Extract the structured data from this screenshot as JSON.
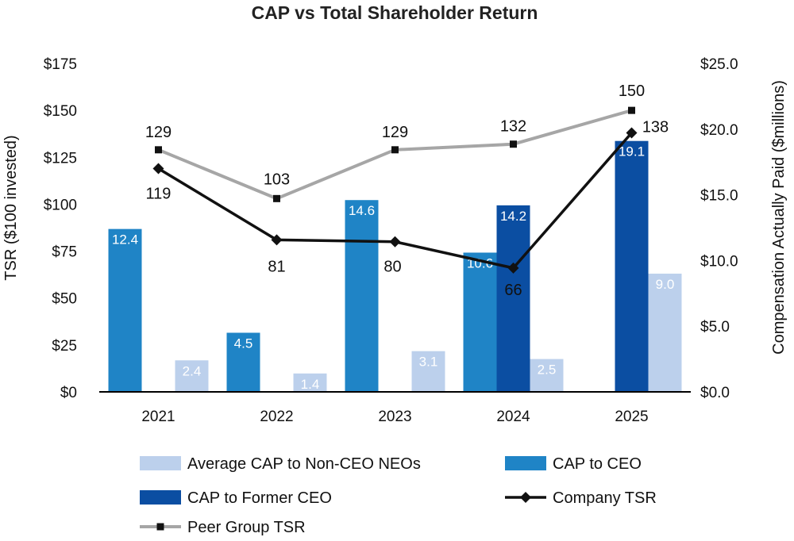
{
  "chart_data": {
    "type": "bar+line",
    "title": "CAP vs Total Shareholder Return",
    "categories": [
      "2021",
      "2022",
      "2023",
      "2024",
      "2025"
    ],
    "y_left": {
      "label": "TSR ($100 invested)",
      "min": 0,
      "max": 175,
      "ticks": [
        "$0",
        "$25",
        "$50",
        "$75",
        "$100",
        "$125",
        "$150",
        "$175"
      ]
    },
    "y_right": {
      "label": "Compensation Actually Paid ($millions)",
      "min": 0,
      "max": 25,
      "ticks": [
        "$0.0",
        "$5.0",
        "$10.0",
        "$15.0",
        "$20.0",
        "$25.0"
      ]
    },
    "bar_series": [
      {
        "name": "CAP to CEO",
        "color": "#1f84c6",
        "values": [
          12.4,
          4.5,
          14.6,
          10.6,
          null
        ],
        "labels": [
          "12.4",
          "4.5",
          "14.6",
          "10.6",
          ""
        ]
      },
      {
        "name": "CAP to Former CEO",
        "color": "#0b4ea2",
        "values": [
          null,
          null,
          null,
          14.2,
          19.1
        ],
        "labels": [
          "",
          "",
          "",
          "14.2",
          "19.1"
        ]
      },
      {
        "name": "Average CAP to Non-CEO NEOs",
        "color": "#bcd0ec",
        "values": [
          2.4,
          1.4,
          3.1,
          2.5,
          9.0
        ],
        "labels": [
          "2.4",
          "1.4",
          "3.1",
          "2.5",
          "9.0"
        ]
      }
    ],
    "line_series": [
      {
        "name": "Company TSR",
        "color": "#111111",
        "marker": "diamond",
        "values": [
          119,
          81,
          80,
          66,
          138
        ],
        "labels": [
          "119",
          "81",
          "80",
          "66",
          "138"
        ]
      },
      {
        "name": "Peer Group TSR",
        "color": "#a6a6a6",
        "marker": "square",
        "values": [
          129,
          103,
          129,
          132,
          150
        ],
        "labels": [
          "129",
          "103",
          "129",
          "132",
          "150"
        ]
      }
    ],
    "legend": {
      "position": "bottom",
      "items": [
        {
          "name": "Average CAP to Non-CEO NEOs",
          "kind": "bar",
          "color": "#bcd0ec"
        },
        {
          "name": "CAP to CEO",
          "kind": "bar",
          "color": "#1f84c6"
        },
        {
          "name": "CAP to Former CEO",
          "kind": "bar",
          "color": "#0b4ea2"
        },
        {
          "name": "Company TSR",
          "kind": "line",
          "color": "#111111",
          "marker": "diamond"
        },
        {
          "name": "Peer Group TSR",
          "kind": "line",
          "color": "#a6a6a6",
          "marker": "square"
        }
      ]
    }
  }
}
